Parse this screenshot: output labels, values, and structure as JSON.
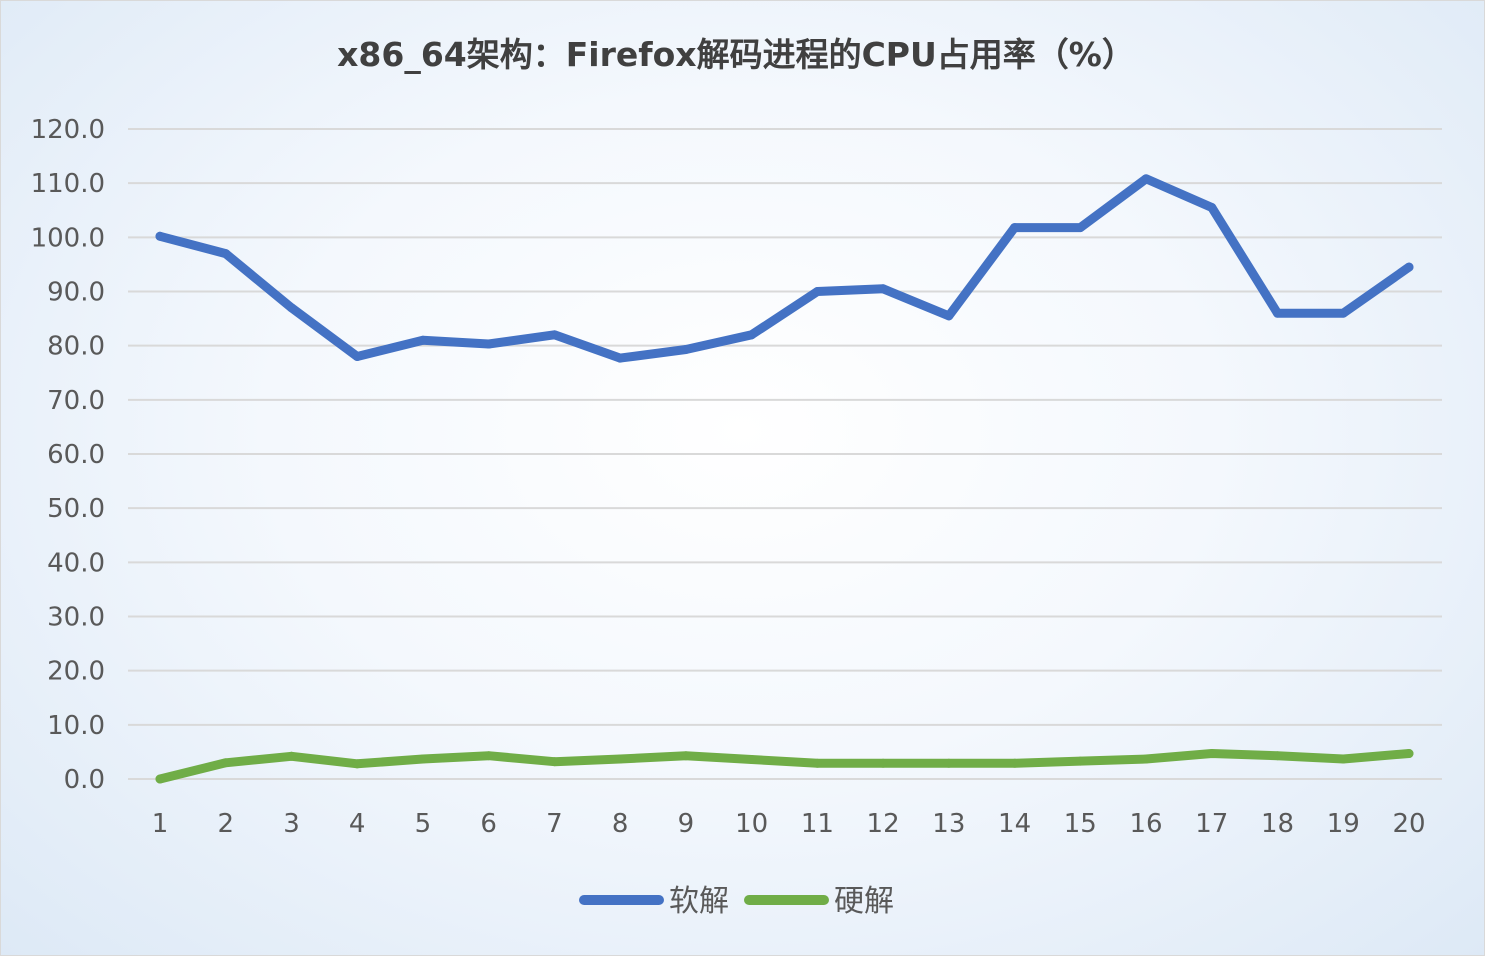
{
  "chart_data": {
    "type": "line",
    "title": "x86_64架构：Firefox解码进程的CPU占用率（%）",
    "xlabel": "",
    "ylabel": "",
    "categories": [
      "1",
      "2",
      "3",
      "4",
      "5",
      "6",
      "7",
      "8",
      "9",
      "10",
      "11",
      "12",
      "13",
      "14",
      "15",
      "16",
      "17",
      "18",
      "19",
      "20"
    ],
    "ylim": [
      0,
      120
    ],
    "yticks": [
      "0.0",
      "10.0",
      "20.0",
      "30.0",
      "40.0",
      "50.0",
      "60.0",
      "70.0",
      "80.0",
      "90.0",
      "100.0",
      "110.0",
      "120.0"
    ],
    "grid": true,
    "legend_position": "bottom",
    "series": [
      {
        "name": "软解",
        "color": "#4472C4",
        "values": [
          100.2,
          97.0,
          87.0,
          78.0,
          81.0,
          80.3,
          82.0,
          77.7,
          79.3,
          82.0,
          90.0,
          90.5,
          85.5,
          101.8,
          101.8,
          110.8,
          105.5,
          86.0,
          86.0,
          94.5
        ]
      },
      {
        "name": "硬解",
        "color": "#70AD47",
        "values": [
          0.0,
          3.0,
          4.2,
          2.8,
          3.7,
          4.3,
          3.2,
          3.7,
          4.3,
          3.6,
          2.9,
          2.9,
          2.9,
          2.9,
          3.3,
          3.7,
          4.7,
          4.3,
          3.7,
          4.7
        ]
      }
    ]
  }
}
